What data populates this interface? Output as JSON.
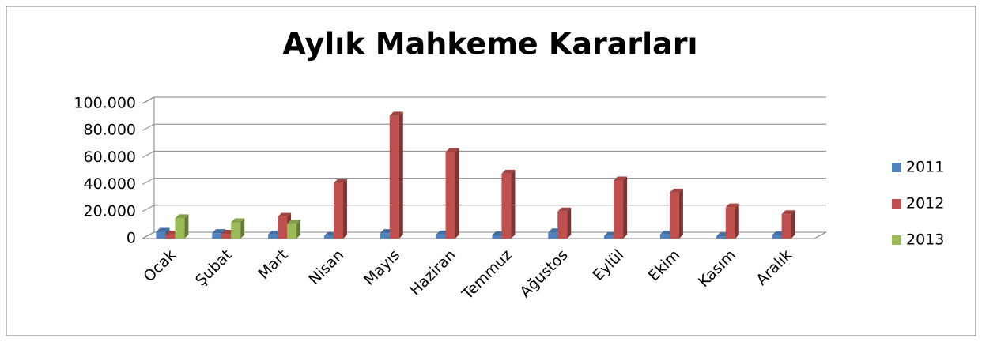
{
  "chart_data": {
    "type": "bar",
    "title": "Aylık Mahkeme Kararları",
    "categories": [
      "Ocak",
      "Şubat",
      "Mart",
      "Nisan",
      "Mayıs",
      "Haziran",
      "Temmuz",
      "Ağustos",
      "Eylül",
      "Ekim",
      "Kasım",
      "Aralık"
    ],
    "series": [
      {
        "name": "2011",
        "color": "#4f81bd",
        "values": [
          5000,
          4000,
          3000,
          2000,
          4000,
          3000,
          2500,
          4500,
          2000,
          3000,
          1500,
          2500
        ]
      },
      {
        "name": "2012",
        "color": "#c0504d",
        "values": [
          3000,
          3500,
          16000,
          41000,
          91000,
          64000,
          48000,
          20000,
          43000,
          34000,
          23000,
          18000
        ]
      },
      {
        "name": "2013",
        "color": "#9bbb59",
        "values": [
          15000,
          12000,
          11000,
          null,
          null,
          null,
          null,
          null,
          null,
          null,
          null,
          null
        ]
      }
    ],
    "ylim": [
      0,
      100000
    ],
    "yticks": [
      0,
      {
        "value": 20000,
        "label": "20.000"
      },
      {
        "value": 40000,
        "label": "40.000"
      },
      {
        "value": 60000,
        "label": "60.000"
      },
      {
        "value": 80000,
        "label": "80.000"
      },
      {
        "value": 100000,
        "label": "100.000"
      }
    ],
    "grid": true,
    "legend": "right"
  }
}
